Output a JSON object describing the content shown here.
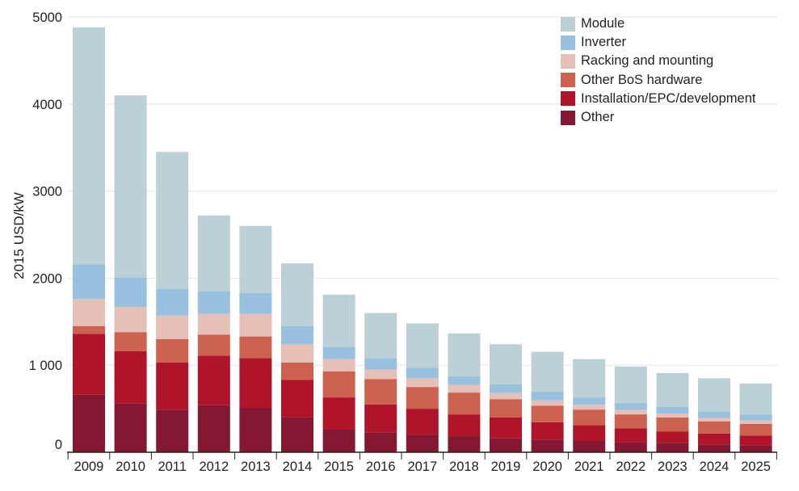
{
  "chart_data": {
    "type": "bar",
    "stacked": true,
    "title": "",
    "xlabel": "",
    "ylabel": "2015 USD/kW",
    "ylim": [
      0,
      5000
    ],
    "yticks": [
      0,
      1000,
      2000,
      3000,
      4000,
      5000
    ],
    "ytick_labels": [
      "0",
      "1 000",
      "2000",
      "3000",
      "4000",
      "5000"
    ],
    "grid": true,
    "legend_position": "top-right",
    "categories": [
      "2009",
      "2010",
      "2011",
      "2012",
      "2013",
      "2014",
      "2015",
      "2016",
      "2017",
      "2018",
      "2019",
      "2020",
      "2021",
      "2022",
      "2023",
      "2024",
      "2025"
    ],
    "series": [
      {
        "name": "Other",
        "color": "#841832",
        "values": [
          660,
          560,
          490,
          540,
          510,
          400,
          260,
          230,
          200,
          185,
          160,
          145,
          130,
          115,
          110,
          90,
          80
        ]
      },
      {
        "name": "Installation/EPC/development",
        "color": "#b0142a",
        "values": [
          700,
          600,
          540,
          570,
          570,
          430,
          370,
          320,
          300,
          250,
          240,
          200,
          180,
          160,
          130,
          125,
          110
        ]
      },
      {
        "name": "Other BoS hardware",
        "color": "#cd6150",
        "values": [
          90,
          220,
          270,
          240,
          250,
          200,
          300,
          290,
          250,
          250,
          210,
          190,
          180,
          160,
          160,
          140,
          135
        ]
      },
      {
        "name": "Racking and mounting",
        "color": "#e6bfb7",
        "values": [
          310,
          290,
          270,
          240,
          260,
          210,
          140,
          110,
          100,
          90,
          70,
          60,
          55,
          50,
          45,
          40,
          40
        ]
      },
      {
        "name": "Inverter",
        "color": "#97c1de",
        "values": [
          400,
          340,
          310,
          260,
          240,
          210,
          140,
          130,
          120,
          100,
          100,
          100,
          85,
          80,
          75,
          75,
          70
        ]
      },
      {
        "name": "Module",
        "color": "#bcd1d6",
        "values": [
          2720,
          2090,
          1570,
          870,
          770,
          720,
          600,
          520,
          510,
          490,
          460,
          460,
          440,
          420,
          390,
          380,
          355
        ]
      }
    ]
  }
}
